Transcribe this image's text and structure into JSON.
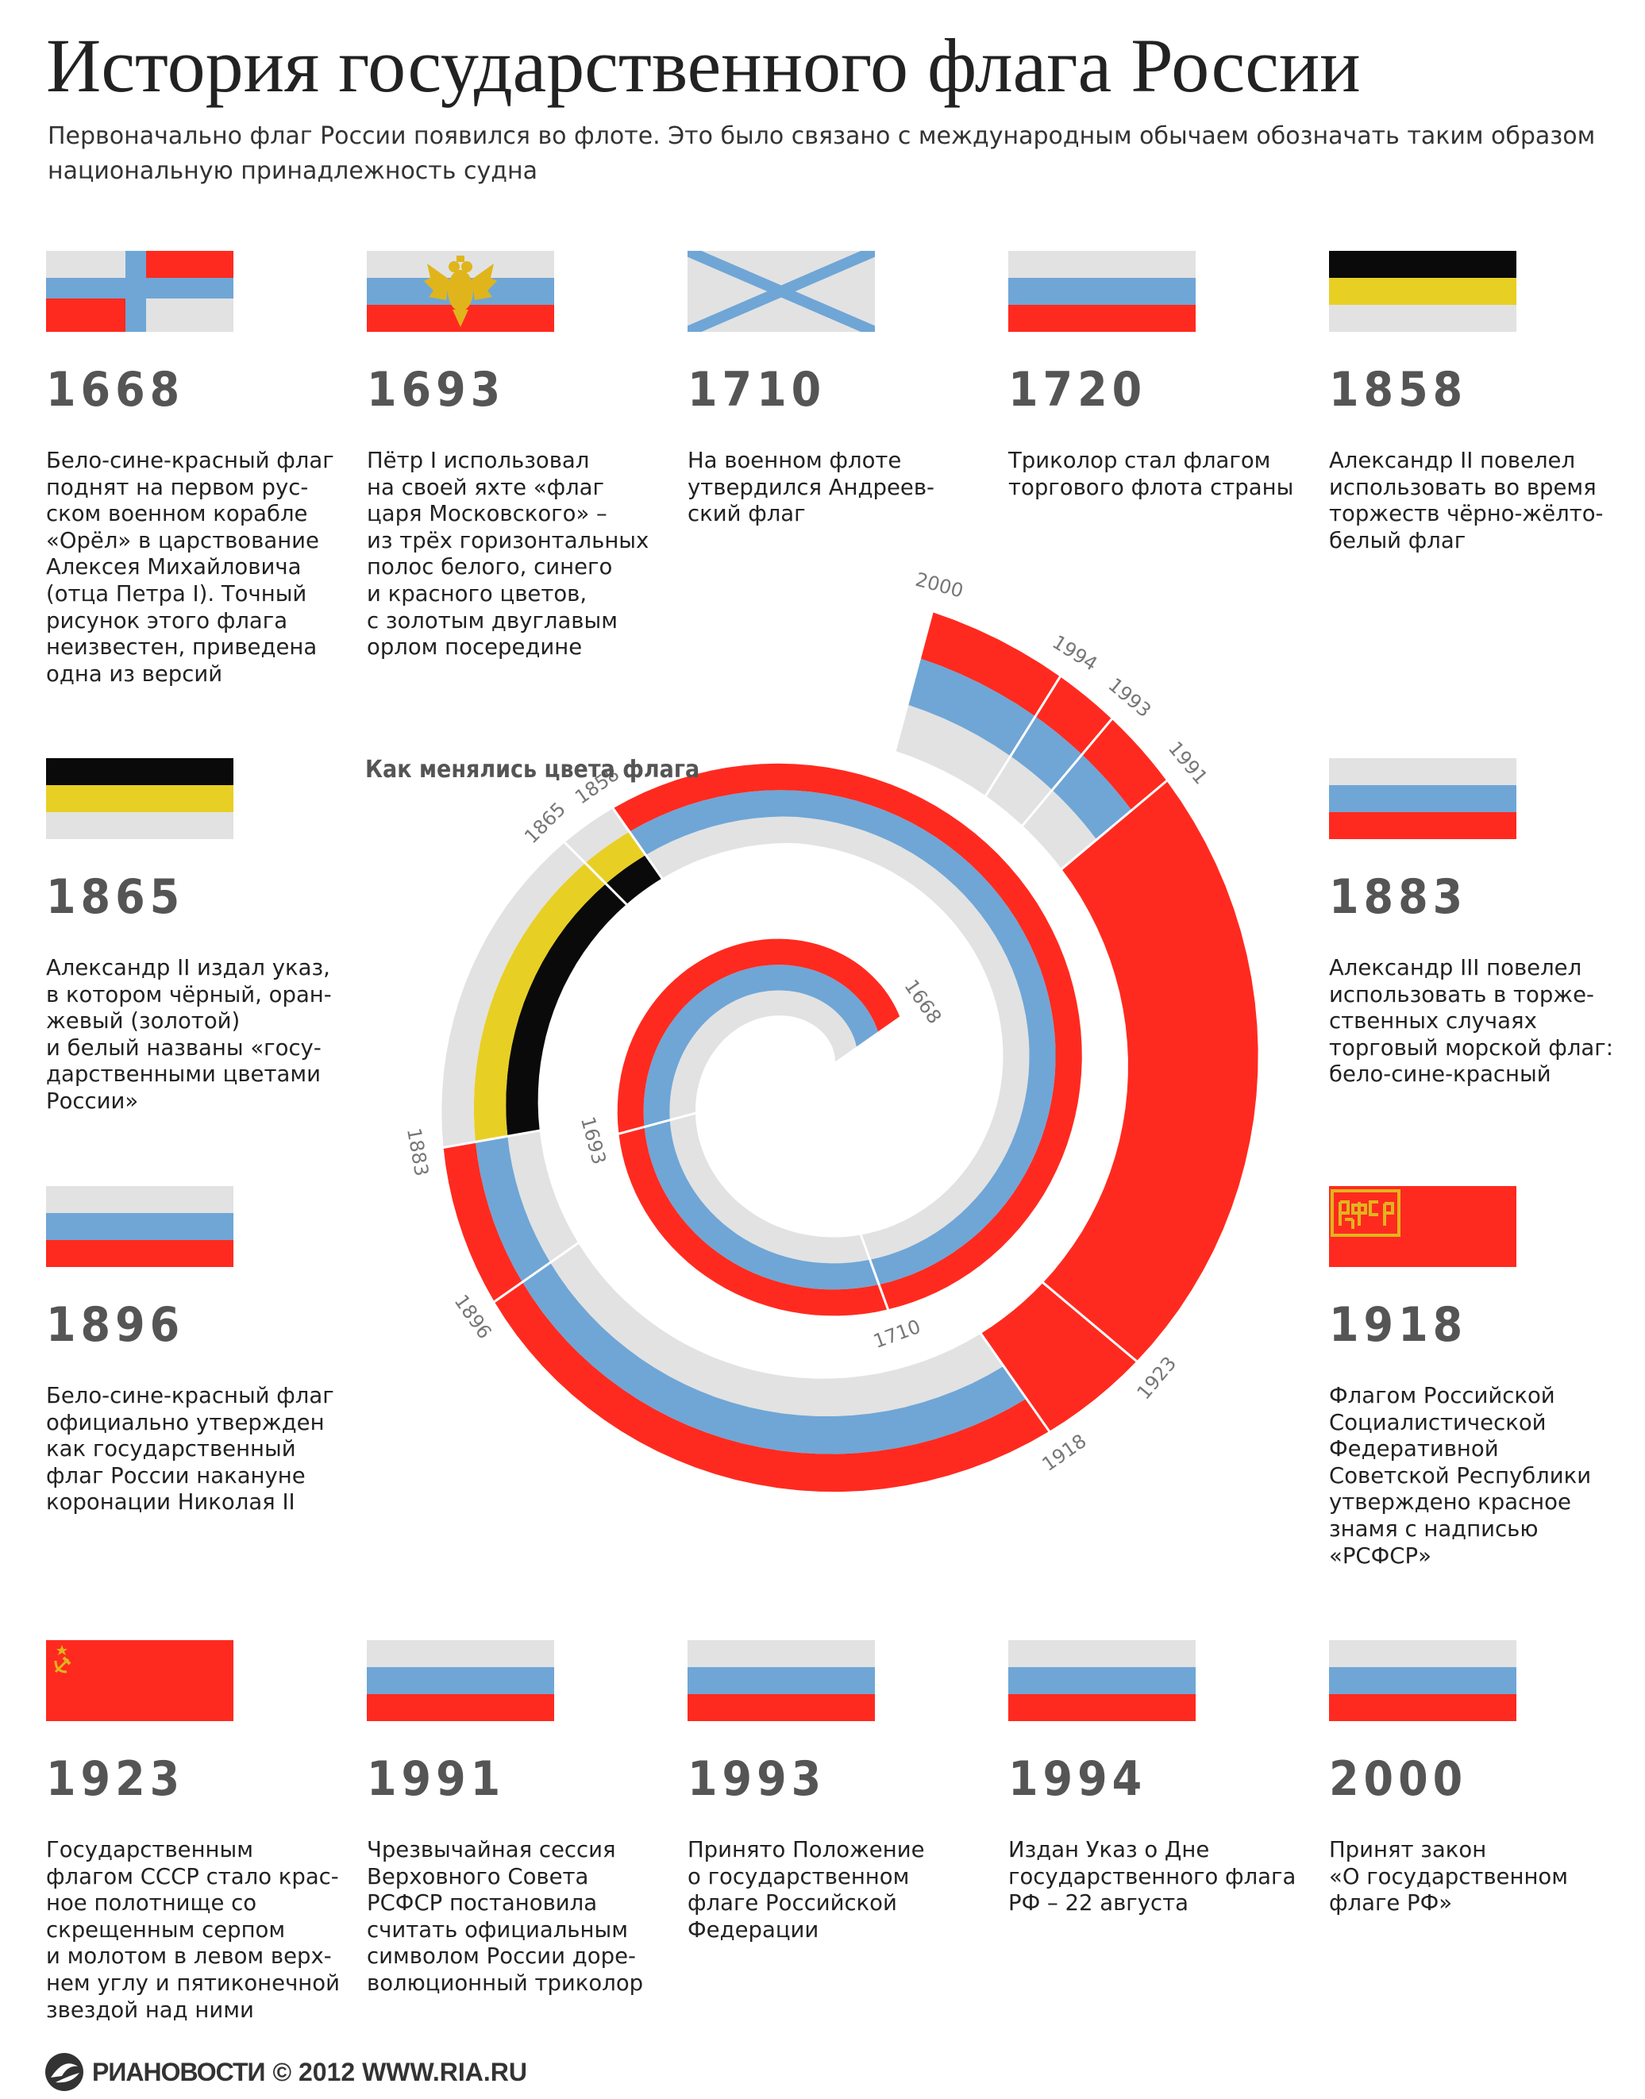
{
  "title": "История государственного флага России",
  "subtitle": "Первоначально флаг России появился во флоте. Это было связано с международным обычаем обозначать таким образом национальную принадлежность судна",
  "colors": {
    "white": "#e2e2e2",
    "blue": "#6fa6d6",
    "red": "#ff2a1f",
    "black": "#0a0a0a",
    "yellow": "#e8cf24",
    "gold": "#e0b51c"
  },
  "entries": [
    {
      "year": "1668",
      "flag": "ensign-1668-icon",
      "text": "Бело-сине-красный флаг\nподнят на первом рус-\nском военном корабле\n«Орёл» в царствование\nАлексея Михайловича\n(отца Петра I). Точный\nрисунок этого флага\nнеизвестен, приведена\nодна из версий"
    },
    {
      "year": "1693",
      "flag": "tsar-moscow-flag-icon",
      "text": "Пётр I использовал\nна своей яхте «флаг\nцаря Московского» –\nиз трёх горизонтальных\nполос белого, синего\nи красного цветов,\nс золотым двуглавым\nорлом посередине"
    },
    {
      "year": "1710",
      "flag": "st-andrew-flag-icon",
      "text": "На военном флоте\nутвердился Андреев-\nский флаг"
    },
    {
      "year": "1720",
      "flag": "tricolor-flag-icon",
      "text": "Триколор стал флагом\nторгового флота страны"
    },
    {
      "year": "1858",
      "flag": "black-yellow-white-flag-icon",
      "text": "Александр II повелел\nиспользовать во время\nторжеств чёрно-жёлто-\nбелый флаг"
    },
    {
      "year": "1865",
      "flag": "black-yellow-white-flag-icon",
      "text": "Александр II издал указ,\nв котором чёрный, оран-\nжевый (золотой)\nи белый названы «госу-\nдарственными цветами\nРоссии»"
    },
    {
      "year": "1883",
      "flag": "tricolor-flag-icon",
      "text": "Александр III повелел\nиспользовать в торже-\nственных случаях\nторговый морской флаг:\nбело-сине-красный"
    },
    {
      "year": "1896",
      "flag": "tricolor-flag-icon",
      "text": "Бело-сине-красный флаг\nофициально утвержден\nкак государственный\nфлаг России накануне\nкоронации Николая II"
    },
    {
      "year": "1918",
      "flag": "rsfsr-flag-icon",
      "text": "Флагом Российской\nСоциалистической\nФедеративной\nСоветской Республики\nутверждено красное\nзнамя с надписью\n«РСФСР»"
    },
    {
      "year": "1923",
      "flag": "ussr-flag-icon",
      "text": "Государственным\nфлагом СССР стало крас-\nное полотнище со\nскрещенным серпом\nи молотом в левом верх-\nнем углу и пятиконечной\nзвездой над ними"
    },
    {
      "year": "1991",
      "flag": "tricolor-flag-icon",
      "text": "Чрезвычайная сессия\nВерховного Совета\nРСФСР постановила\nсчитать официальным\nсимволом России доре-\nволюционный триколор"
    },
    {
      "year": "1993",
      "flag": "tricolor-flag-icon",
      "text": "Принято Положение\nо государственном\nфлаге Российской\nФедерации"
    },
    {
      "year": "1994",
      "flag": "tricolor-flag-icon",
      "text": "Издан Указ о Дне\nгосударственного флага\nРФ – 22 августа"
    },
    {
      "year": "2000",
      "flag": "tricolor-flag-icon",
      "text": "Принят закон\n«О государственном\nфлаге РФ»"
    }
  ],
  "spiral": {
    "label": "Как менялись цвета флага",
    "segments": [
      {
        "from": "1668",
        "to": "1693",
        "colors": [
          "white",
          "blue",
          "red"
        ]
      },
      {
        "from": "1693",
        "to": "1710",
        "colors": [
          "white",
          "blue",
          "red"
        ]
      },
      {
        "from": "1710",
        "to": "1858",
        "colors": [
          "white",
          "blue",
          "red"
        ]
      },
      {
        "from": "1858",
        "to": "1865",
        "colors": [
          "black",
          "yellow",
          "white"
        ]
      },
      {
        "from": "1865",
        "to": "1883",
        "colors": [
          "black",
          "yellow",
          "white"
        ]
      },
      {
        "from": "1883",
        "to": "1896",
        "colors": [
          "white",
          "blue",
          "red"
        ]
      },
      {
        "from": "1896",
        "to": "1918",
        "colors": [
          "white",
          "blue",
          "red"
        ]
      },
      {
        "from": "1918",
        "to": "1923",
        "colors": [
          "red"
        ]
      },
      {
        "from": "1923",
        "to": "1991",
        "colors": [
          "red"
        ]
      },
      {
        "from": "1991",
        "to": "1993",
        "colors": [
          "white",
          "blue",
          "red"
        ]
      },
      {
        "from": "1993",
        "to": "1994",
        "colors": [
          "white",
          "blue",
          "red"
        ]
      },
      {
        "from": "1994",
        "to": "2000",
        "colors": [
          "white",
          "blue",
          "red"
        ]
      }
    ],
    "ticks": [
      "1668",
      "1693",
      "1710",
      "1858",
      "1865",
      "1883",
      "1896",
      "1918",
      "1923",
      "1991",
      "1993",
      "1994",
      "2000"
    ]
  },
  "footer": {
    "logo": "ria-novosti-logo-icon",
    "brand": "РИАНОВОСТИ",
    "copyright": "© 2012 WWW.RIA.RU"
  }
}
